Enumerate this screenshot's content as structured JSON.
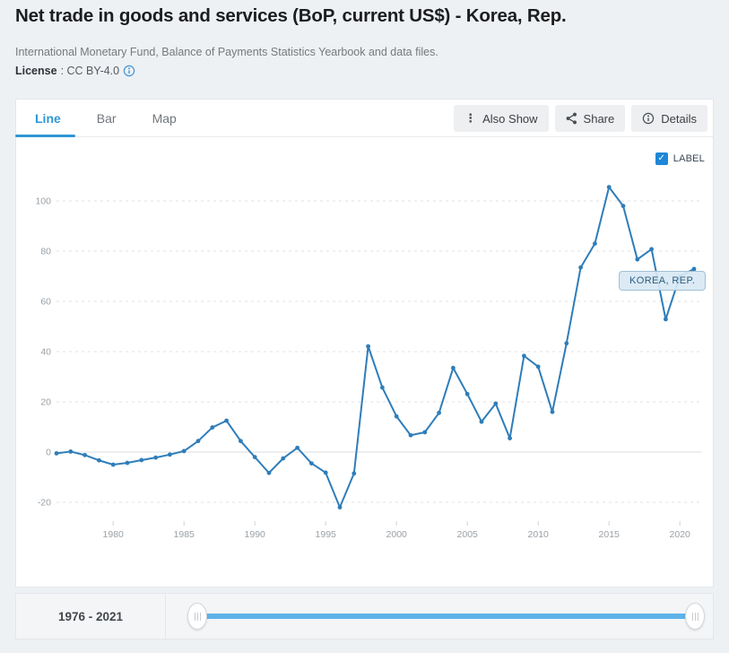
{
  "header": {
    "title": "Net trade in goods and services (BoP, current US$) - Korea, Rep.",
    "source": "International Monetary Fund, Balance of Payments Statistics Yearbook and data files.",
    "license_label": "License",
    "license_value": ": CC BY-4.0"
  },
  "tabs": [
    {
      "label": "Line",
      "active": true
    },
    {
      "label": "Bar",
      "active": false
    },
    {
      "label": "Map",
      "active": false
    }
  ],
  "actions": {
    "also_show": "Also Show",
    "share": "Share",
    "details": "Details"
  },
  "chart": {
    "label_checkbox_text": "LABEL",
    "checkbox_checked": "✓",
    "series_tag": "KOREA, REP."
  },
  "chart_data": {
    "type": "line",
    "title": "Net trade in goods and services (BoP, current US$) - Korea, Rep.",
    "x_range": [
      1976,
      2021
    ],
    "x": [
      1976,
      1977,
      1978,
      1979,
      1980,
      1981,
      1982,
      1983,
      1984,
      1985,
      1986,
      1987,
      1988,
      1989,
      1990,
      1991,
      1992,
      1993,
      1994,
      1995,
      1996,
      1997,
      1998,
      1999,
      2000,
      2001,
      2002,
      2003,
      2004,
      2005,
      2006,
      2007,
      2008,
      2009,
      2010,
      2011,
      2012,
      2013,
      2014,
      2015,
      2016,
      2017,
      2018,
      2019,
      2020,
      2021
    ],
    "series": [
      {
        "name": "KOREA, REP.",
        "values": [
          -0.5,
          0.2,
          -1.2,
          -3.3,
          -5.0,
          -4.3,
          -3.2,
          -2.2,
          -1.0,
          0.4,
          4.4,
          9.8,
          12.5,
          4.4,
          -2.0,
          -8.3,
          -2.5,
          1.7,
          -4.5,
          -8.2,
          -22.0,
          -8.5,
          42.1,
          25.7,
          14.2,
          6.7,
          7.9,
          15.6,
          33.5,
          23.1,
          12.1,
          19.3,
          5.5,
          38.3,
          34.0,
          16.0,
          43.3,
          73.5,
          83.0,
          105.5,
          98.0,
          76.7,
          80.8,
          52.9,
          70.0,
          72.9
        ]
      }
    ],
    "unit": "billions of US$",
    "yticks": [
      100,
      80,
      60,
      40,
      20,
      0,
      -20
    ],
    "xticks": [
      1980,
      1985,
      1990,
      1995,
      2000,
      2005,
      2010,
      2015,
      2020
    ],
    "ylim": [
      -30,
      112
    ],
    "grid": "dashed horizontal",
    "legend_position": "inline-label-near-2020",
    "colors": {
      "line": "#2e7dba",
      "grid": "#e0e2e5",
      "zero_line": "#dadce0",
      "tick_text": "#9aa1a7"
    }
  },
  "range_bar": {
    "label": "1976 - 2021",
    "start": "1976",
    "end": "2021"
  }
}
